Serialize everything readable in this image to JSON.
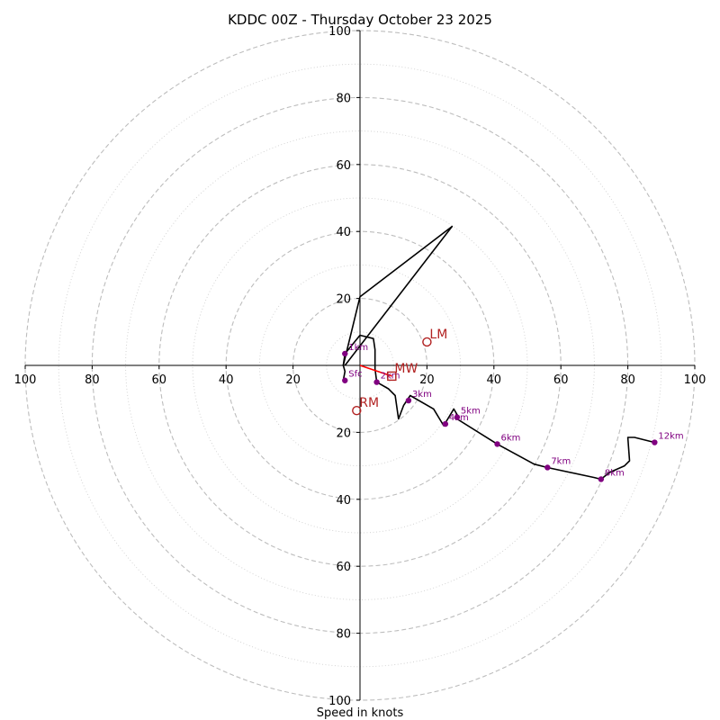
{
  "chart_data": {
    "type": "hodograph",
    "title": "KDDC 00Z - Thursday October 23 2025",
    "xlabel": "Speed in knots",
    "xlim": [
      -100,
      100
    ],
    "ylim": [
      -100,
      100
    ],
    "ring_major": [
      20,
      40,
      60,
      80,
      100
    ],
    "ring_minor": [
      10,
      30,
      50,
      70,
      90
    ],
    "x_ticks": [
      {
        "value": -100,
        "label": "100"
      },
      {
        "value": -80,
        "label": "80"
      },
      {
        "value": -60,
        "label": "60"
      },
      {
        "value": -40,
        "label": "40"
      },
      {
        "value": -20,
        "label": "20"
      },
      {
        "value": 20,
        "label": "20"
      },
      {
        "value": 40,
        "label": "40"
      },
      {
        "value": 60,
        "label": "60"
      },
      {
        "value": 80,
        "label": "80"
      },
      {
        "value": 100,
        "label": "100"
      }
    ],
    "y_ticks": [
      {
        "value": 100,
        "label": "100"
      },
      {
        "value": 80,
        "label": "80"
      },
      {
        "value": 60,
        "label": "60"
      },
      {
        "value": 40,
        "label": "40"
      },
      {
        "value": 20,
        "label": "20"
      },
      {
        "value": -20,
        "label": "20"
      },
      {
        "value": -40,
        "label": "40"
      },
      {
        "value": -60,
        "label": "60"
      },
      {
        "value": -80,
        "label": "80"
      },
      {
        "value": -100,
        "label": "100"
      }
    ],
    "trace": [
      [
        -5,
        -4.5
      ],
      [
        -4.5,
        -1.8
      ],
      [
        -5,
        0
      ],
      [
        -4.5,
        3.5
      ],
      [
        0,
        9
      ],
      [
        4,
        8
      ],
      [
        4.5,
        4.7
      ],
      [
        4.5,
        -1
      ],
      [
        5,
        -5
      ],
      [
        8.5,
        -7
      ],
      [
        10.5,
        -9
      ],
      [
        11.5,
        -16
      ],
      [
        13,
        -12
      ],
      [
        15,
        -9
      ],
      [
        22,
        -13
      ],
      [
        25,
        -18
      ],
      [
        28,
        -13
      ],
      [
        29.5,
        -15.5
      ],
      [
        29,
        -16
      ],
      [
        41,
        -23.5
      ],
      [
        52,
        -29.5
      ],
      [
        56,
        -30.5
      ],
      [
        70,
        -33.5
      ],
      [
        72,
        -34
      ],
      [
        74.5,
        -32
      ],
      [
        79,
        -30
      ],
      [
        80.5,
        -28.5
      ],
      [
        80,
        -21.5
      ],
      [
        82,
        -21.5
      ],
      [
        88,
        -23
      ]
    ],
    "spike": [
      [
        -5,
        0
      ],
      [
        0,
        20.5
      ],
      [
        27.5,
        41.5
      ],
      [
        -4.5,
        0
      ]
    ],
    "height_markers": [
      {
        "label": "Sfc",
        "u": -4.5,
        "v": -4.5
      },
      {
        "label": "1km",
        "u": -4.5,
        "v": 3.5
      },
      {
        "label": "2km",
        "u": 5,
        "v": -5
      },
      {
        "label": "3km",
        "u": 14.5,
        "v": -10.5
      },
      {
        "label": "4km",
        "u": 25.5,
        "v": -17.5
      },
      {
        "label": "5km",
        "u": 29,
        "v": -15.5
      },
      {
        "label": "6km",
        "u": 41,
        "v": -23.5
      },
      {
        "label": "7km",
        "u": 56,
        "v": -30.5
      },
      {
        "label": "8km",
        "u": 72,
        "v": -34
      },
      {
        "label": "12km",
        "u": 88,
        "v": -23
      }
    ],
    "mean_wind_line": [
      [
        0,
        0
      ],
      [
        9.5,
        -3.2
      ]
    ],
    "storm_motion": [
      {
        "label": "LM",
        "u": 20,
        "v": 7,
        "marker": "circle"
      },
      {
        "label": "RM",
        "u": -1,
        "v": -13.5,
        "marker": "circle"
      },
      {
        "label": "MW",
        "u": 9.5,
        "v": -3.2,
        "marker": "square"
      }
    ],
    "colors": {
      "trace": "#000000",
      "marker": "#800080",
      "storm": "#b22222",
      "mean_wind": "#ff0000",
      "grid": "#bdbdbd",
      "axis": "#000000"
    }
  }
}
